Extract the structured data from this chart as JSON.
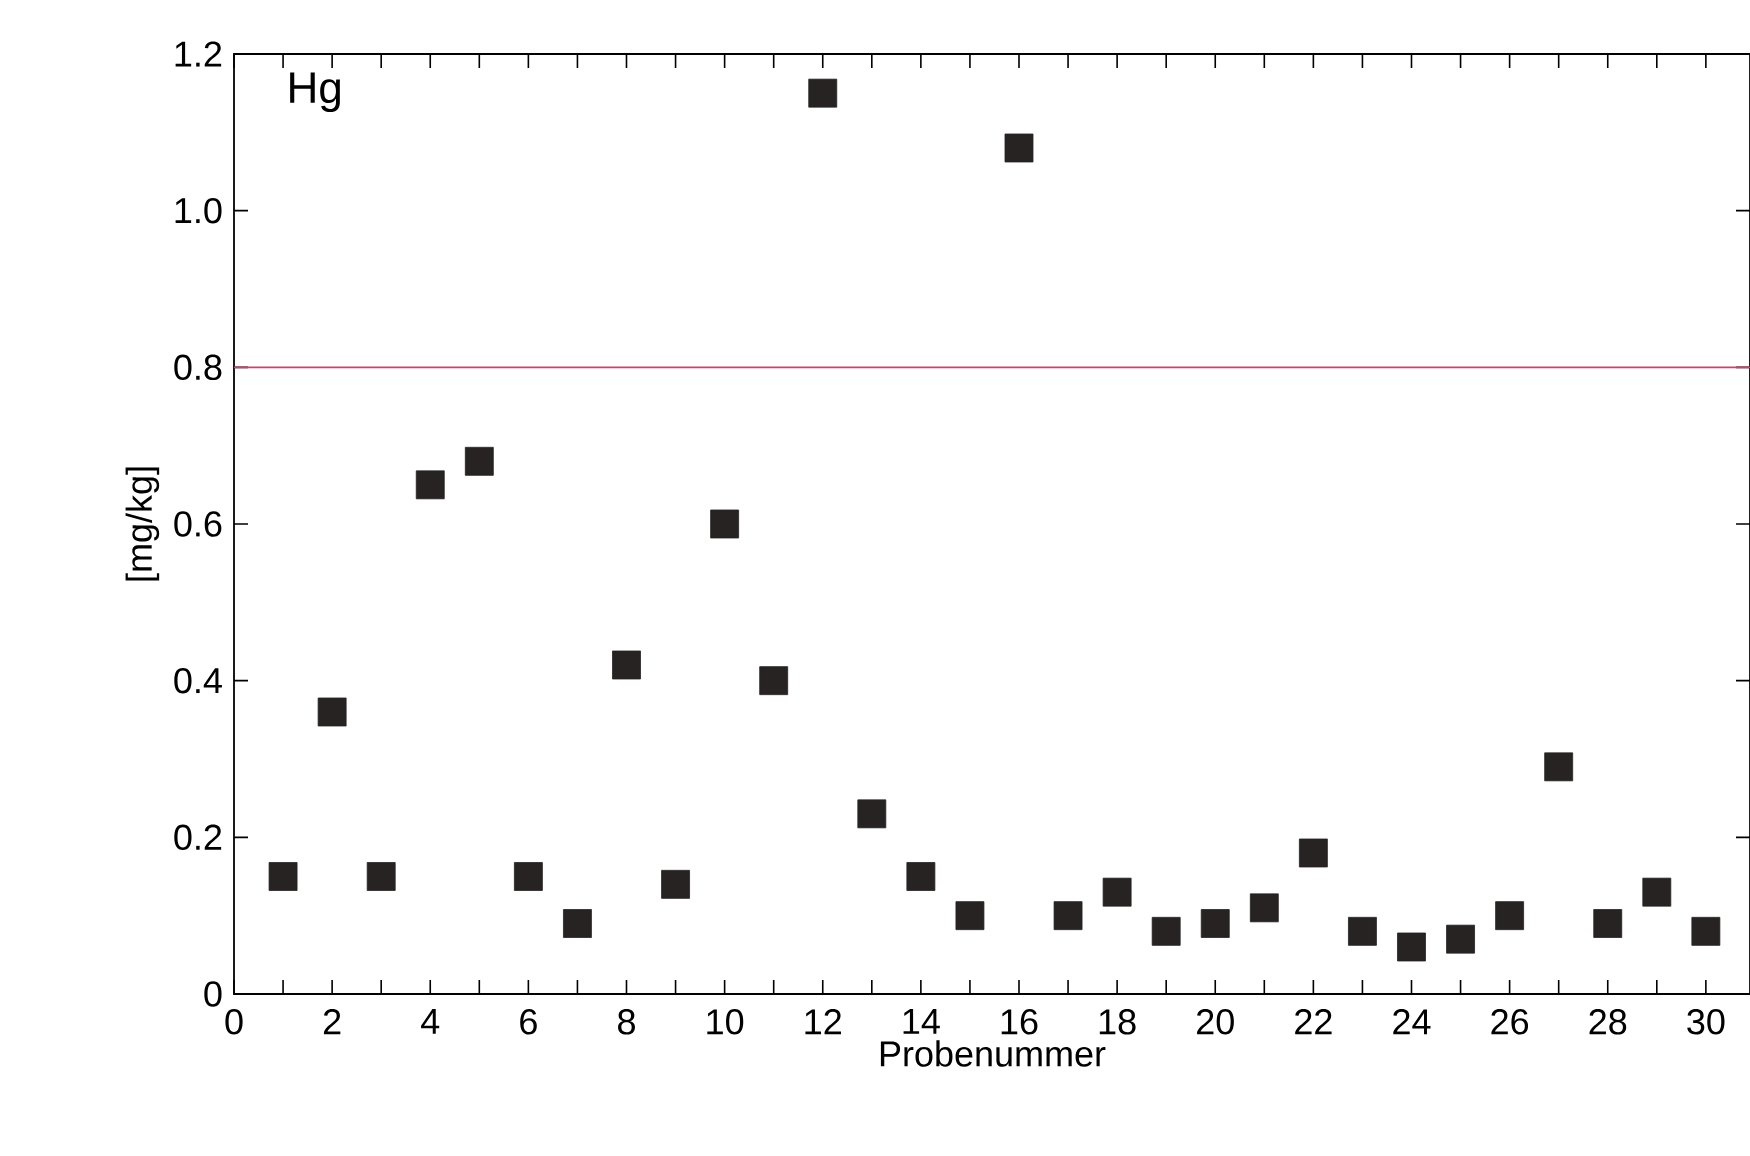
{
  "chart_data": {
    "type": "scatter",
    "title": "Hg",
    "xlabel": "Probenummer",
    "ylabel": "[mg/kg]",
    "x": [
      1,
      2,
      3,
      4,
      5,
      6,
      7,
      8,
      9,
      10,
      11,
      12,
      13,
      14,
      15,
      16,
      17,
      18,
      19,
      20,
      21,
      22,
      23,
      24,
      25,
      26,
      27,
      28,
      29,
      30
    ],
    "values": [
      0.15,
      0.36,
      0.15,
      0.65,
      0.68,
      0.15,
      0.09,
      0.42,
      0.14,
      0.6,
      0.4,
      1.15,
      0.23,
      0.15,
      0.1,
      1.08,
      0.1,
      0.13,
      0.08,
      0.09,
      0.11,
      0.18,
      0.08,
      0.06,
      0.07,
      0.1,
      0.29,
      0.09,
      0.13,
      0.08
    ],
    "color": "#262322",
    "marker": "square",
    "xlim": [
      0,
      30.9
    ],
    "ylim": [
      0,
      1.2
    ],
    "xticks": [
      0,
      {
        "value": 1,
        "label": null
      },
      2,
      {
        "value": 3,
        "label": null
      },
      4,
      {
        "value": 5,
        "label": null
      },
      6,
      {
        "value": 7,
        "label": null
      },
      8,
      {
        "value": 9,
        "label": null
      },
      10,
      {
        "value": 11,
        "label": null
      },
      12,
      {
        "value": 13,
        "label": null
      },
      14,
      {
        "value": 15,
        "label": null
      },
      16,
      {
        "value": 17,
        "label": null
      },
      18,
      {
        "value": 19,
        "label": null
      },
      20,
      {
        "value": 21,
        "label": null
      },
      22,
      {
        "value": 23,
        "label": null
      },
      24,
      {
        "value": 25,
        "label": null
      },
      26,
      {
        "value": 27,
        "label": null
      },
      28,
      {
        "value": 29,
        "label": null
      },
      30
    ],
    "yticks": [
      0,
      0.2,
      0.4,
      0.6,
      0.8,
      {
        "value": 1.0,
        "label": "1.0"
      },
      1.2
    ],
    "ref_lines": [
      {
        "axis": "y",
        "value": 0.8,
        "color": "#d0406a"
      }
    ],
    "grid": false
  }
}
